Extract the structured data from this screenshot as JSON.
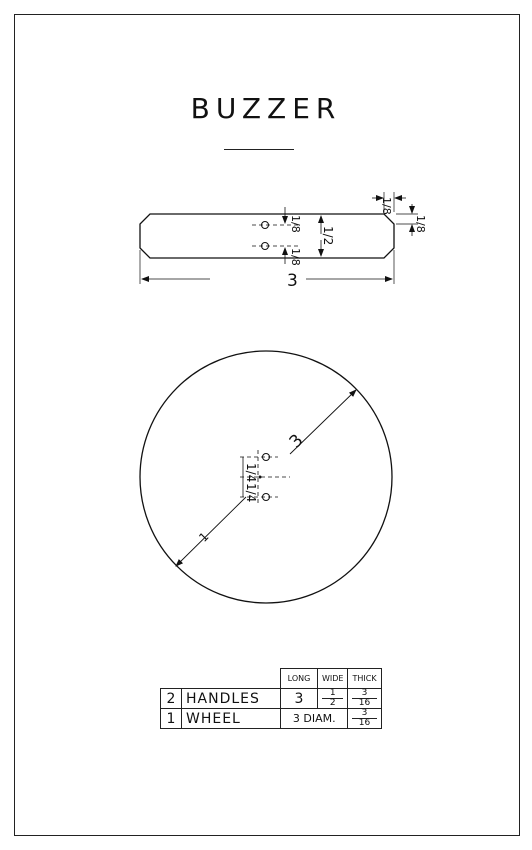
{
  "title": "BUZZER",
  "handle_view": {
    "overall_length": "3",
    "width": "1/2",
    "hole_offset_top": "1/8",
    "hole_offset_bottom": "1/8",
    "chamfer_x": "1/8",
    "chamfer_y": "1/8"
  },
  "wheel_view": {
    "diameter": "3",
    "hole_spacing_top": "1/4",
    "hole_spacing_bottom": "1/4"
  },
  "bill_of_materials": {
    "headers": [
      "LONG",
      "WIDE",
      "THICK"
    ],
    "rows": [
      {
        "qty": "2",
        "name": "HANDLES",
        "long": "3",
        "wide_num": "1",
        "wide_den": "2",
        "thick_num": "3",
        "thick_den": "16"
      },
      {
        "qty": "1",
        "name": "WHEEL",
        "long": "3 DIAM.",
        "thick_num": "3",
        "thick_den": "16"
      }
    ]
  }
}
